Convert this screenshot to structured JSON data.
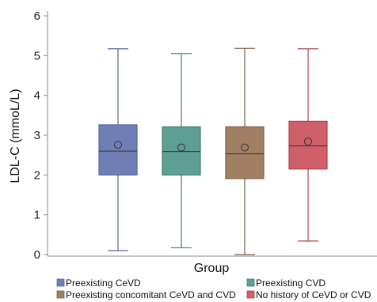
{
  "chart_data": {
    "type": "box",
    "xlabel": "Group",
    "ylabel": "LDL-C (mmoL/L)",
    "ylim": [
      0,
      6
    ],
    "yticks": [
      0,
      1,
      2,
      3,
      4,
      5,
      6
    ],
    "grid": false,
    "legend_position": "bottom",
    "series": [
      {
        "name": "Preexisting CeVD",
        "color": "#6f7fb6",
        "stroke": "#5566a0",
        "min": 0.1,
        "q1": 2.0,
        "median": 2.6,
        "q3": 3.26,
        "max": 5.17,
        "mean": 2.76
      },
      {
        "name": "Preexisting CVD",
        "color": "#5f9e93",
        "stroke": "#3f7f74",
        "min": 0.17,
        "q1": 2.0,
        "median": 2.59,
        "q3": 3.21,
        "max": 5.05,
        "mean": 2.69
      },
      {
        "name": "Preexisting concomitant CeVD and CVD",
        "color": "#a07f63",
        "stroke": "#7d5f46",
        "min": 0.0,
        "q1": 1.91,
        "median": 2.53,
        "q3": 3.21,
        "max": 5.18,
        "mean": 2.69
      },
      {
        "name": "No history of CeVD or CVD",
        "color": "#cf5f68",
        "stroke": "#b0434c",
        "min": 0.34,
        "q1": 2.15,
        "median": 2.73,
        "q3": 3.35,
        "max": 5.17,
        "mean": 2.84
      }
    ]
  }
}
